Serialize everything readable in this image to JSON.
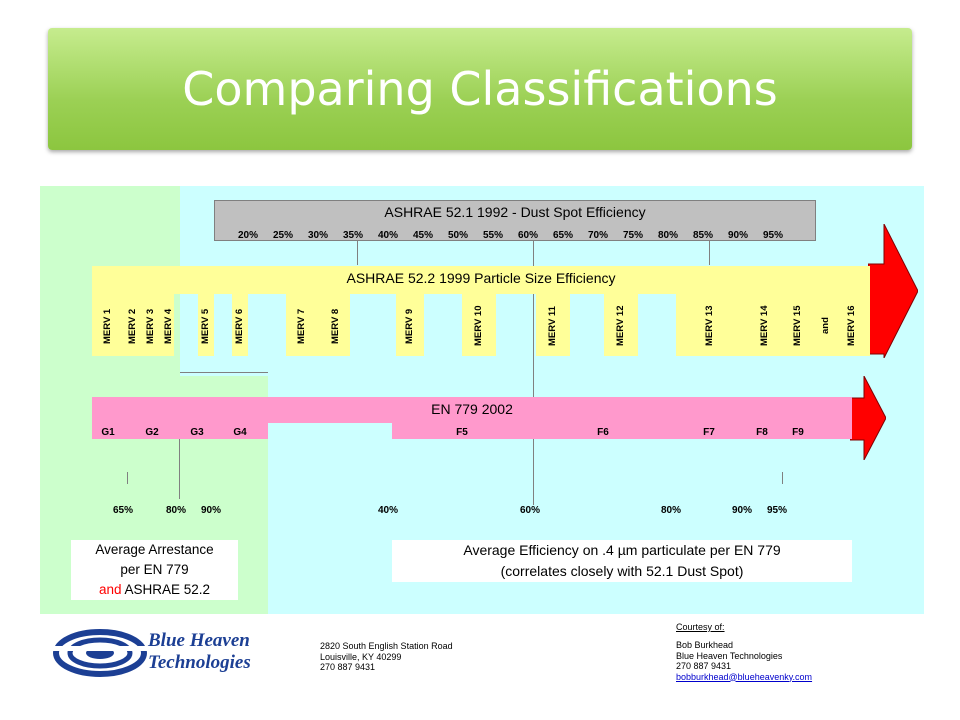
{
  "title": "Comparing Classifications",
  "ashrae_521": {
    "title": "ASHRAE 52.1 1992 - Dust Spot Efficiency",
    "percentages": [
      "20%",
      "25%",
      "30%",
      "35%",
      "40%",
      "45%",
      "50%",
      "55%",
      "60%",
      "65%",
      "70%",
      "75%",
      "80%",
      "85%",
      "90%",
      "95%"
    ]
  },
  "ashrae_522": {
    "title": "ASHRAE 52.2 1999 Particle Size Efficiency",
    "mervs": [
      "MERV 1",
      "MERV 2",
      "MERV 3",
      "MERV 4",
      "MERV 5",
      "MERV 6",
      "MERV 7",
      "MERV 8",
      "MERV 9",
      "MERV 10",
      "MERV 11",
      "MERV 12",
      "MERV 13",
      "MERV 14",
      "MERV 15",
      "and",
      "MERV 16"
    ]
  },
  "en779": {
    "title": "EN 779 2002",
    "grades": [
      "G1",
      "G2",
      "G3",
      "G4",
      "F5",
      "F6",
      "F7",
      "F8",
      "F9"
    ]
  },
  "arrestance_pcts": [
    "65%",
    "80%",
    "90%"
  ],
  "efficiency_pcts": [
    "40%",
    "60%",
    "80%",
    "90%",
    "95%"
  ],
  "arrestance_note": {
    "line1": "Average Arrestance",
    "line2": "per EN 779",
    "line3_and": "and",
    "line3_rest": "ASHRAE 52.2"
  },
  "efficiency_note": {
    "line1": "Average Efficiency on .4 µm particulate per EN 779",
    "line2": "(correlates closely with 52.1 Dust Spot)"
  },
  "footer": {
    "logo_line1": "Blue Heaven",
    "logo_line2": "Technologies",
    "address": [
      "2820 South English Station Road",
      "Louisville, KY 40299",
      "270 887 9431"
    ],
    "courtesy_label": "Courtesy of:",
    "contact": [
      "Bob Burkhead",
      "Blue Heaven Technologies",
      "270 887 9431"
    ],
    "email": "bobburkhead@blueheavenky.com"
  },
  "colors": {
    "title_green": "#8cc63f",
    "cyan": "#ccffff",
    "green_bg": "#ccffcc",
    "yellow": "#ffff99",
    "pink": "#ff99cc",
    "red_arrow": "#ff0000",
    "gray_box": "#c0c0c0",
    "logo_blue": "#1c3f94"
  }
}
